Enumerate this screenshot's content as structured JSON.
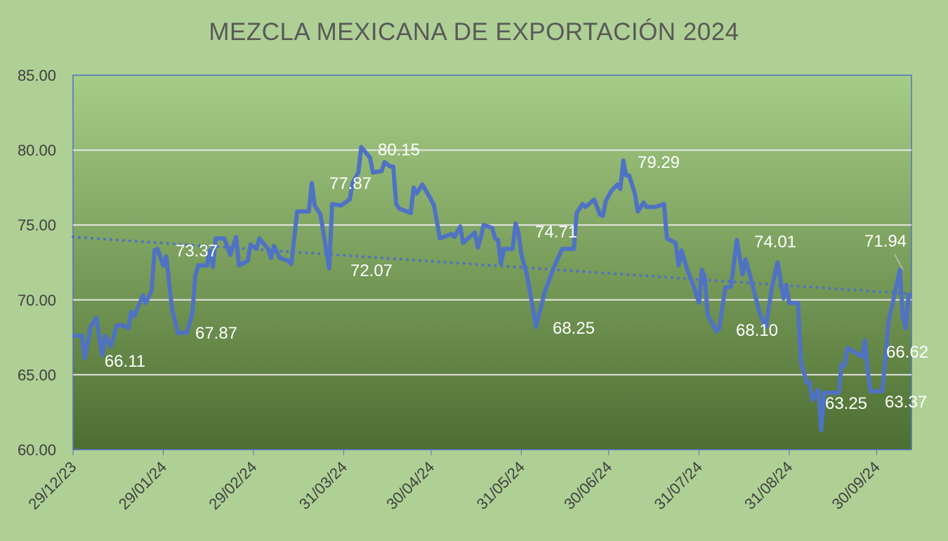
{
  "chart_data": {
    "type": "line",
    "title": "MEZCLA MEXICANA DE EXPORTACIÓN 2024",
    "xlabel": "",
    "ylabel": "",
    "ylim": [
      60,
      85
    ],
    "xlim": [
      "2023-12-29",
      "2024-10-12"
    ],
    "y_ticks": [
      "60.00",
      "65.00",
      "70.00",
      "75.00",
      "80.00",
      "85.00"
    ],
    "x_ticks": [
      {
        "date": "2023-12-29",
        "label": "29/12/23"
      },
      {
        "date": "2024-01-29",
        "label": "29/01/24"
      },
      {
        "date": "2024-02-29",
        "label": "29/02/24"
      },
      {
        "date": "2024-03-31",
        "label": "31/03/24"
      },
      {
        "date": "2024-04-30",
        "label": "30/04/24"
      },
      {
        "date": "2024-05-31",
        "label": "31/05/24"
      },
      {
        "date": "2024-06-30",
        "label": "30/06/24"
      },
      {
        "date": "2024-07-31",
        "label": "31/07/24"
      },
      {
        "date": "2024-08-31",
        "label": "31/08/24"
      },
      {
        "date": "2024-09-30",
        "label": "30/09/24"
      }
    ],
    "grid": "horizontal",
    "colors": {
      "line": "#4f72c4",
      "trend": "#4f72c4",
      "grid": "#e6e6e6",
      "background": "#afd095",
      "plot_top": "#a6cd86",
      "plot_bottom": "#4d6e31"
    },
    "series": [
      {
        "x": [
          "2023-12-29",
          "2024-01-01",
          "2024-01-02",
          "2024-01-04",
          "2024-01-06",
          "2024-01-08",
          "2024-01-09",
          "2024-01-11",
          "2024-01-13",
          "2024-01-15",
          "2024-01-17",
          "2024-01-18",
          "2024-01-19",
          "2024-01-22",
          "2024-01-23",
          "2024-01-25",
          "2024-01-26",
          "2024-01-27",
          "2024-01-29",
          "2024-01-30",
          "2024-02-01",
          "2024-02-03",
          "2024-02-06",
          "2024-02-08",
          "2024-02-09",
          "2024-02-10",
          "2024-02-13",
          "2024-02-14",
          "2024-02-15",
          "2024-02-16",
          "2024-02-19",
          "2024-02-21",
          "2024-02-23",
          "2024-02-24",
          "2024-02-27",
          "2024-02-28",
          "2024-03-01",
          "2024-03-02",
          "2024-03-05",
          "2024-03-06",
          "2024-03-07",
          "2024-03-09",
          "2024-03-12",
          "2024-03-13",
          "2024-03-15",
          "2024-03-19",
          "2024-03-20",
          "2024-03-21",
          "2024-03-23",
          "2024-03-26",
          "2024-03-27",
          "2024-03-30",
          "2024-04-02",
          "2024-04-03",
          "2024-04-05",
          "2024-04-06",
          "2024-04-09",
          "2024-04-10",
          "2024-04-13",
          "2024-04-14",
          "2024-04-16",
          "2024-04-17",
          "2024-04-18",
          "2024-04-19",
          "2024-04-23",
          "2024-04-24",
          "2024-04-25",
          "2024-04-27",
          "2024-04-30",
          "2024-05-01",
          "2024-05-03",
          "2024-05-07",
          "2024-05-08",
          "2024-05-10",
          "2024-05-11",
          "2024-05-15",
          "2024-05-16",
          "2024-05-17",
          "2024-05-18",
          "2024-05-21",
          "2024-05-22",
          "2024-05-23",
          "2024-05-24",
          "2024-05-25",
          "2024-05-28",
          "2024-05-29",
          "2024-05-30",
          "2024-05-31",
          "2024-06-02",
          "2024-06-04",
          "2024-06-05",
          "2024-06-08",
          "2024-06-11",
          "2024-06-14",
          "2024-06-18",
          "2024-06-19",
          "2024-06-21",
          "2024-06-22",
          "2024-06-25",
          "2024-06-27",
          "2024-06-28",
          "2024-06-29",
          "2024-07-01",
          "2024-07-03",
          "2024-07-04",
          "2024-07-05",
          "2024-07-06",
          "2024-07-07",
          "2024-07-09",
          "2024-07-10",
          "2024-07-12",
          "2024-07-13",
          "2024-07-16",
          "2024-07-19",
          "2024-07-20",
          "2024-07-23",
          "2024-07-24",
          "2024-07-25",
          "2024-07-27",
          "2024-07-29",
          "2024-07-31",
          "2024-08-01",
          "2024-08-02",
          "2024-08-03",
          "2024-08-06",
          "2024-08-07",
          "2024-08-09",
          "2024-08-11",
          "2024-08-13",
          "2024-08-15",
          "2024-08-16",
          "2024-08-18",
          "2024-08-21",
          "2024-08-23",
          "2024-08-25",
          "2024-08-27",
          "2024-08-29",
          "2024-08-30",
          "2024-08-31",
          "2024-09-03",
          "2024-09-04",
          "2024-09-06",
          "2024-09-07",
          "2024-09-08",
          "2024-09-10",
          "2024-09-11",
          "2024-09-12",
          "2024-09-17",
          "2024-09-18",
          "2024-09-19",
          "2024-09-20",
          "2024-09-25",
          "2024-09-26",
          "2024-09-27",
          "2024-09-28",
          "2024-10-02",
          "2024-10-03",
          "2024-10-04",
          "2024-10-08",
          "2024-10-09",
          "2024-10-10",
          "2024-10-11",
          "2024-10-12"
        ],
        "values": [
          67.6,
          67.6,
          66.1,
          68.2,
          68.8,
          66.3,
          67.6,
          66.9,
          68.3,
          68.3,
          68.1,
          69.2,
          68.9,
          70.3,
          69.8,
          70.6,
          73.3,
          73.4,
          72.3,
          72.9,
          69.4,
          67.8,
          67.8,
          69.1,
          71.6,
          72.3,
          72.3,
          73.3,
          72.2,
          74.1,
          74.1,
          73.0,
          74.2,
          72.3,
          72.6,
          73.7,
          73.4,
          74.1,
          73.4,
          72.8,
          73.6,
          72.8,
          72.6,
          72.4,
          75.9,
          75.9,
          77.8,
          76.3,
          75.7,
          72.1,
          76.4,
          76.3,
          76.7,
          77.8,
          78.5,
          80.2,
          79.5,
          78.5,
          78.6,
          79.2,
          78.9,
          78.9,
          76.4,
          76.1,
          75.8,
          77.5,
          77.1,
          77.7,
          76.7,
          76.3,
          74.1,
          74.4,
          74.2,
          74.9,
          73.8,
          74.5,
          73.5,
          74.1,
          75.0,
          74.8,
          74.1,
          74.0,
          72.4,
          73.4,
          73.4,
          75.1,
          74.5,
          73.0,
          71.6,
          69.4,
          68.2,
          70.5,
          72.1,
          73.4,
          73.4,
          75.8,
          76.4,
          76.2,
          76.7,
          75.7,
          75.6,
          76.6,
          77.3,
          77.7,
          77.4,
          79.3,
          78.3,
          78.3,
          77.1,
          75.9,
          76.5,
          76.2,
          76.2,
          76.4,
          74.1,
          73.8,
          72.3,
          73.3,
          72.0,
          71.0,
          69.8,
          72.0,
          71.5,
          69.0,
          67.9,
          68.1,
          70.8,
          70.9,
          74.0,
          71.7,
          72.7,
          71.3,
          69.0,
          68.2,
          70.8,
          72.5,
          70.1,
          71.0,
          69.8,
          69.8,
          65.9,
          64.5,
          64.5,
          63.3,
          64.0,
          61.3,
          63.8,
          63.8,
          65.7,
          65.6,
          66.8,
          66.2,
          67.3,
          65.2,
          63.9,
          63.9,
          66.1,
          68.4,
          72.0,
          68.9,
          68.1,
          70.3,
          70.4
        ]
      }
    ],
    "trendline": {
      "type": "linear",
      "start": [
        "2023-12-29",
        74.2
      ],
      "end": [
        "2024-10-12",
        70.4
      ]
    },
    "data_labels": [
      "66.11",
      "73.37",
      "67.87",
      "77.87",
      "72.07",
      "80.15",
      "74.71",
      "68.25",
      "79.29",
      "74.01",
      "68.10",
      "71.94",
      "66.62",
      "63.25",
      "63.37"
    ]
  }
}
